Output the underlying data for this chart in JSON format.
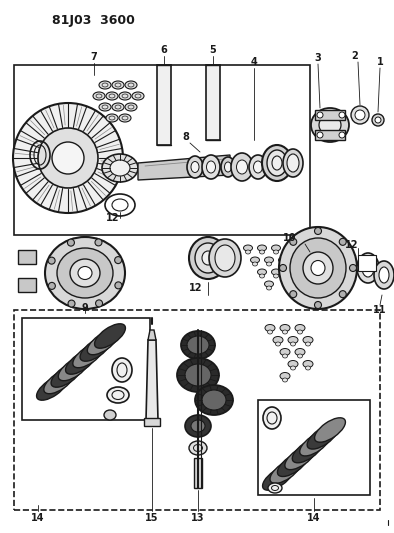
{
  "title": "81J03 3600",
  "bg_color": "#ffffff",
  "line_color": "#1a1a1a",
  "fig_width": 3.94,
  "fig_height": 5.33,
  "dpi": 100
}
